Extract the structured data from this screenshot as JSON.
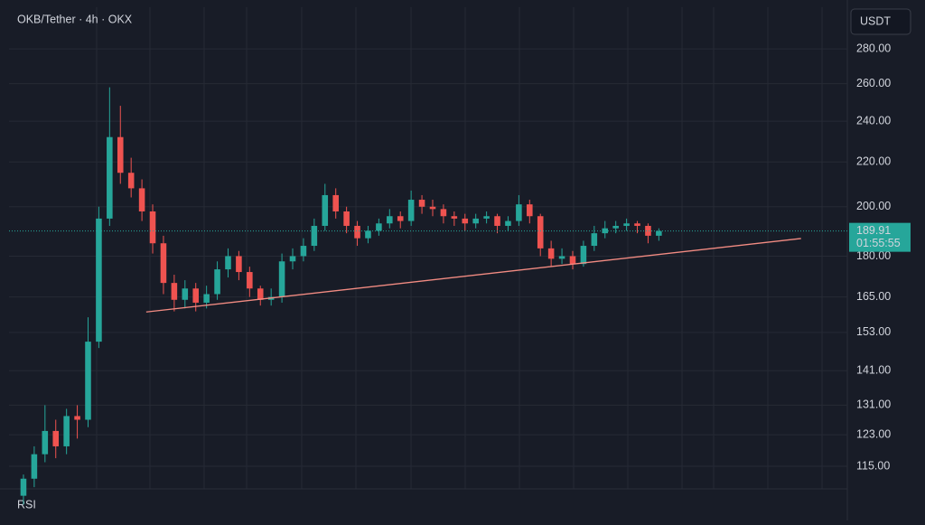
{
  "chart_data": {
    "type": "candlestick",
    "title": "OKB/Tether · 4h · OKX",
    "currency": "USDT",
    "pane_label": "RSI",
    "log_scale": true,
    "grid": true,
    "up_color": "#26a69a",
    "down_color": "#ef5350",
    "xlim": [
      -0.5,
      76.5
    ],
    "ylim": [
      109.6,
      306
    ],
    "yticks": [
      {
        "value": 280,
        "label": "280.00"
      },
      {
        "value": 260,
        "label": "260.00"
      },
      {
        "value": 240,
        "label": "240.00"
      },
      {
        "value": 220,
        "label": "220.00"
      },
      {
        "value": 200,
        "label": "200.00"
      },
      {
        "value": 180,
        "label": "180.00"
      },
      {
        "value": 165,
        "label": "165.00"
      },
      {
        "value": 153,
        "label": "153.00"
      },
      {
        "value": 141,
        "label": "141.00"
      },
      {
        "value": 131,
        "label": "131.00"
      },
      {
        "value": 123,
        "label": "123.00"
      },
      {
        "value": 115,
        "label": "115.00"
      }
    ],
    "open": [
      108,
      112,
      118,
      124,
      120,
      128,
      127,
      150,
      195,
      232,
      215,
      208,
      198,
      185,
      170,
      164,
      168,
      163,
      166,
      175,
      180,
      174,
      168,
      164,
      165,
      178,
      180,
      184,
      192,
      205,
      198,
      192,
      187,
      190,
      193,
      196,
      194,
      203,
      200,
      199,
      196,
      195,
      193,
      195,
      196,
      192,
      194,
      201,
      196,
      183,
      179,
      180,
      177,
      184,
      189,
      191,
      192,
      193,
      192,
      188
    ],
    "high": [
      113,
      120,
      131,
      127,
      130,
      131,
      158,
      200,
      258,
      248,
      222,
      212,
      201,
      188,
      173,
      171,
      170,
      169,
      178,
      183,
      182,
      176,
      169,
      168,
      181,
      183,
      187,
      195,
      210,
      208,
      200,
      194,
      192,
      195,
      199,
      198,
      207,
      205,
      203,
      201,
      198,
      197,
      197,
      198,
      197,
      196,
      205,
      203,
      197,
      186,
      183,
      182,
      186,
      192,
      194,
      194,
      195,
      194,
      193,
      191
    ],
    "low": [
      106,
      110,
      116,
      117,
      118,
      122,
      125,
      148,
      192,
      210,
      204,
      194,
      181,
      166,
      160,
      161,
      160,
      161,
      164,
      172,
      171,
      165,
      162,
      162,
      163,
      175,
      178,
      182,
      190,
      195,
      189,
      184,
      185,
      188,
      191,
      191,
      192,
      197,
      196,
      193,
      192,
      190,
      191,
      193,
      189,
      190,
      192,
      193,
      180,
      176,
      177,
      175,
      176,
      182,
      187,
      189,
      190,
      189,
      185,
      186
    ],
    "close": [
      112,
      118,
      124,
      120,
      128,
      127,
      150,
      195,
      232,
      215,
      208,
      198,
      185,
      170,
      164,
      168,
      163,
      166,
      175,
      180,
      174,
      168,
      164,
      165,
      178,
      180,
      184,
      192,
      205,
      198,
      192,
      187,
      190,
      193,
      196,
      194,
      203,
      200,
      199,
      196,
      195,
      193,
      195,
      196,
      192,
      194,
      201,
      196,
      183,
      179,
      180,
      177,
      184,
      189,
      191,
      192,
      193,
      192,
      188,
      189.91
    ],
    "last_price": 189.91,
    "countdown": "01:55:55",
    "trendline": {
      "color": "#f28b82",
      "x": [
        11.4,
        72.2
      ],
      "y": [
        159.8,
        186.9
      ]
    }
  }
}
